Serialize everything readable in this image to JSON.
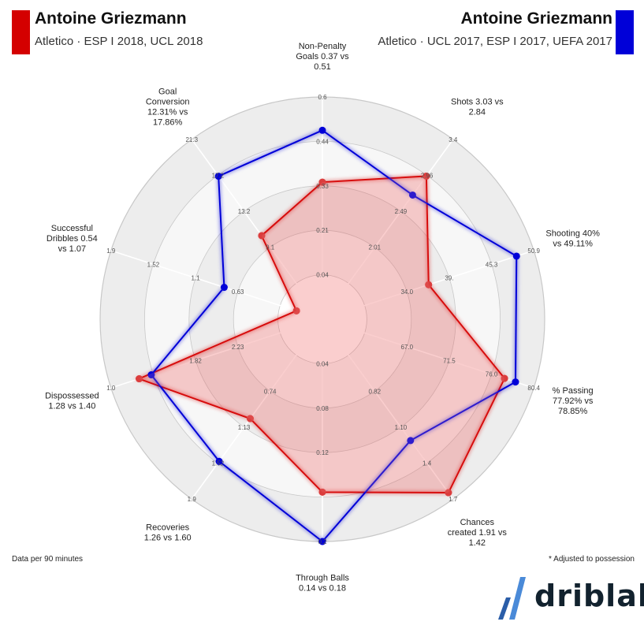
{
  "header": {
    "left": {
      "player": "Antoine Griezmann",
      "subtitle": "Atletico · ESP I 2018, UCL 2018",
      "color": "#d40000"
    },
    "right": {
      "player": "Antoine Griezmann",
      "subtitle": "Atletico · UCL 2017, ESP I 2017, UEFA 2017",
      "color": "#0000d8"
    }
  },
  "footer": {
    "left_note": "Data per 90 minutes",
    "right_note": "* Adjusted to possession",
    "brand": "driblab"
  },
  "chart_data": {
    "type": "radar",
    "rings": 5,
    "axes": [
      {
        "label": "Non-Penalty Goals 0.37 vs 0.51",
        "lines": [
          "Non-Penalty",
          "Goals 0.37 vs",
          "0.51"
        ],
        "min": 0,
        "max": 0.6,
        "ticks": [
          "0.04",
          "0.21",
          "0.33",
          "0.44",
          "0.6"
        ]
      },
      {
        "label": "Shots 3.03 vs 2.84",
        "lines": [
          "Shots 3.03 vs",
          "2.84"
        ],
        "min": 1.59,
        "max": 3.4,
        "ticks": [
          "",
          "2.01",
          "2.49",
          "2.96",
          "3.4"
        ]
      },
      {
        "label": "Shooting 40% vs 49.11%",
        "lines": [
          "Shooting 40%",
          "vs 49.11%"
        ],
        "min": 29.0,
        "max": 50.9,
        "ticks": [
          "",
          "34.0",
          "39.",
          "45.3",
          "50.9"
        ]
      },
      {
        "label": "% Passing 77.92% vs 78.85%",
        "lines": [
          "% Passing",
          "77.92% vs",
          "78.85%"
        ],
        "min": 62.5,
        "max": 80.4,
        "ticks": [
          "",
          "67.0",
          "71.5",
          "76.0",
          "80.4"
        ]
      },
      {
        "label": "Chances created 1.91 vs 1.42",
        "lines": [
          "Chances",
          "created 1.91 vs",
          "1.42"
        ],
        "min": 0.28,
        "max": 1.97,
        "ticks": [
          "",
          "0.82",
          "1.10",
          "1.4",
          "1.7"
        ]
      },
      {
        "label": "Through Balls 0.14 vs 0.18",
        "lines": [
          "Through Balls",
          "0.14 vs 0.18"
        ],
        "min": 0.0,
        "max": 0.18,
        "ticks": [
          "0.04",
          "0.08",
          "0.12",
          "",
          "0.2"
        ]
      },
      {
        "label": "Recoveries 1.26 vs 1.60",
        "lines": [
          "Recoveries",
          "1.26 vs 1.60"
        ],
        "min": 0.47,
        "max": 1.9,
        "ticks": [
          "",
          "0.74",
          "1.13",
          "1.52",
          "1.9"
        ]
      },
      {
        "label": "Dispossessed 1.28 vs 1.40",
        "lines": [
          "Dispossessed",
          "1.28 vs 1.40"
        ],
        "min": 3.1,
        "max": 1.0,
        "ticks": [
          "",
          "2.23",
          "1.82",
          "",
          "1.0"
        ]
      },
      {
        "label": "Successful Dribbles 0.54 vs 1.07",
        "lines": [
          "Successful",
          "Dribbles 0.54",
          "vs 1.07"
        ],
        "min": 0.35,
        "max": 1.9,
        "ticks": [
          "",
          "0.63",
          "1.1",
          "1.52",
          "1.9"
        ]
      },
      {
        "label": "Goal Conversion 12.31% vs 17.86%",
        "lines": [
          "Goal",
          "Conversion",
          "12.31% vs",
          "17.86%"
        ],
        "min": 4.5,
        "max": 21.3,
        "ticks": [
          "",
          "9.1",
          "13.2",
          "17.2",
          "21.3"
        ]
      }
    ],
    "series": [
      {
        "name": "Antoine Griezmann · Atletico · ESP I 2018, UCL 2018",
        "color": "#d40000",
        "values": [
          0.37,
          3.03,
          40.0,
          77.92,
          1.91,
          0.14,
          1.26,
          1.28,
          0.54,
          12.31
        ]
      },
      {
        "name": "Antoine Griezmann · Atletico · UCL 2017, ESP I 2017, UEFA 2017",
        "color": "#0000d8",
        "values": [
          0.51,
          2.84,
          49.11,
          78.85,
          1.42,
          0.18,
          1.6,
          1.4,
          1.07,
          17.86
        ]
      }
    ]
  }
}
